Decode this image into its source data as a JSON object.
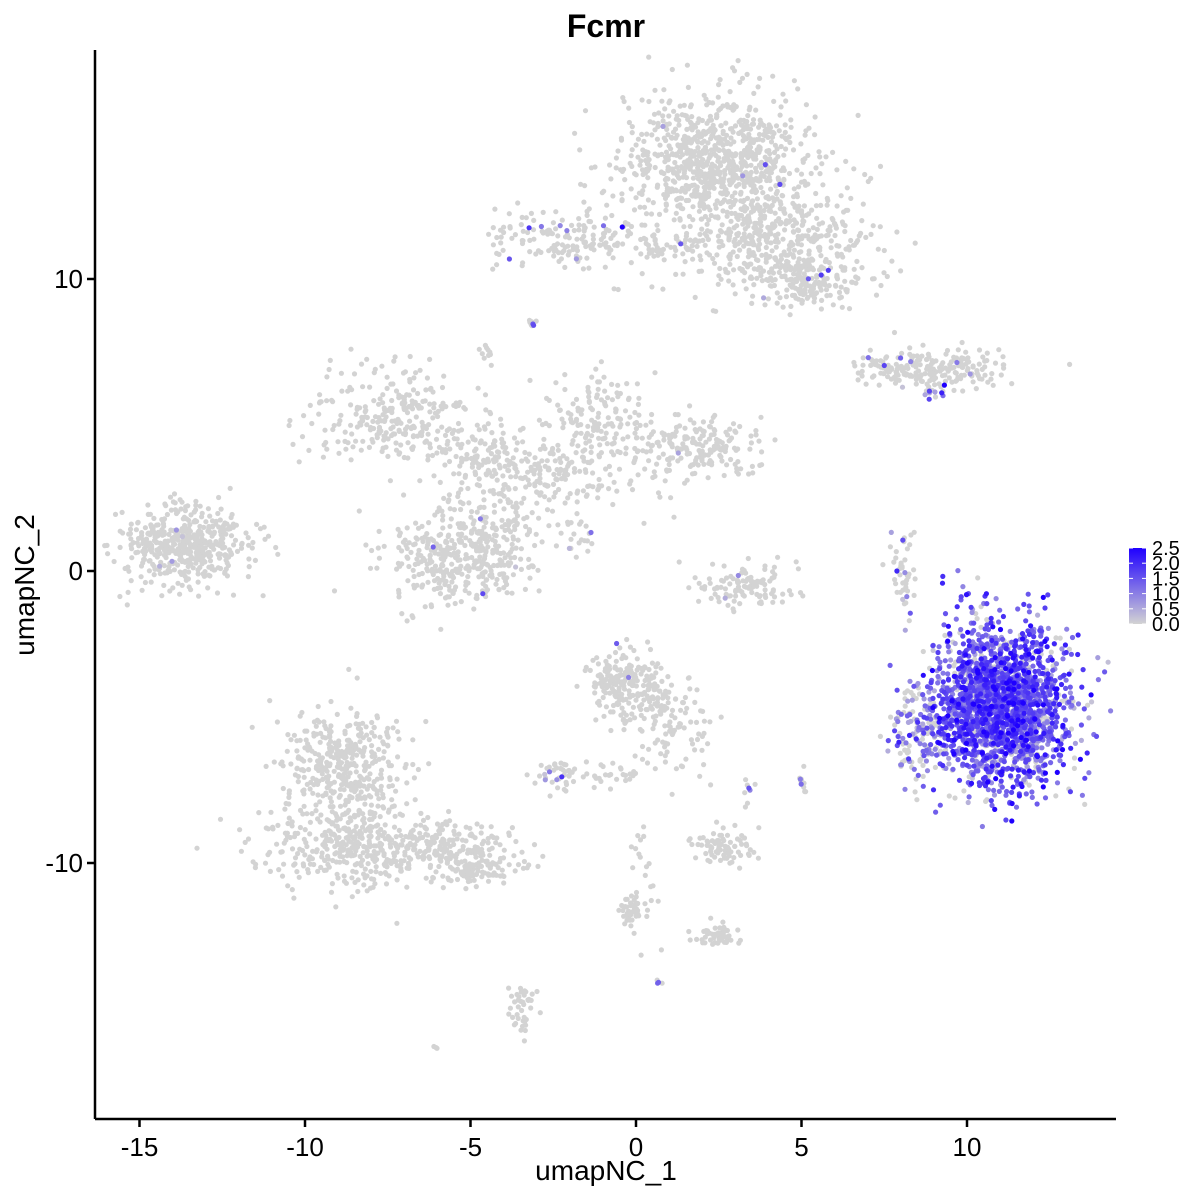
{
  "chart_data": {
    "type": "scatter",
    "title": "Fcmr",
    "xlabel": "umapNC_1",
    "ylabel": "umapNC_2",
    "xlim": [
      -16.5,
      14.5
    ],
    "ylim": [
      -18.5,
      17.7
    ],
    "x_ticks": [
      -15,
      -10,
      -5,
      0,
      5,
      10
    ],
    "x_tick_labels": [
      "-15",
      "-10",
      "-5",
      "0",
      "5",
      "10"
    ],
    "y_ticks": [
      10,
      0,
      -10
    ],
    "y_tick_labels": [
      "10",
      "0",
      "-10"
    ],
    "grid": false,
    "legend": {
      "placement": "right",
      "type": "colorbar",
      "range": [
        0,
        2.5
      ],
      "ticks": [
        2.5,
        2.0,
        1.5,
        1.0,
        0.5,
        0.0
      ],
      "tick_labels": [
        "2.5",
        "2.0",
        "1.5",
        "1.0",
        "0.5",
        "0.0"
      ]
    },
    "colors": {
      "low": "#d3d3d3",
      "high": "#1f00ff",
      "axis": "#000000"
    },
    "expression_range": [
      0,
      2.5
    ],
    "clusters": [
      {
        "cx": 2.5,
        "cy": 14.0,
        "sx": 1.4,
        "sy": 1.2,
        "n": 900,
        "expr_frac": 0.01,
        "expr_mean": 0.8
      },
      {
        "cx": 4.2,
        "cy": 11.3,
        "sx": 1.6,
        "sy": 0.9,
        "n": 420,
        "expr_frac": 0.02,
        "expr_mean": 0.8
      },
      {
        "cx": 5.3,
        "cy": 9.8,
        "sx": 0.8,
        "sy": 0.4,
        "n": 150,
        "expr_frac": 0.02,
        "expr_mean": 0.8
      },
      {
        "cx": -2.1,
        "cy": 11.4,
        "sx": 1.1,
        "sy": 0.5,
        "n": 160,
        "expr_frac": 0.05,
        "expr_mean": 1.2
      },
      {
        "cx": 0.8,
        "cy": 11.0,
        "sx": 1.0,
        "sy": 0.3,
        "n": 40,
        "expr_frac": 0.05,
        "expr_mean": 1.2
      },
      {
        "cx": 9.2,
        "cy": 6.9,
        "sx": 1.2,
        "sy": 0.35,
        "n": 180,
        "expr_frac": 0.03,
        "expr_mean": 1.0
      },
      {
        "cx": 7.8,
        "cy": 6.9,
        "sx": 0.6,
        "sy": 0.2,
        "n": 40,
        "expr_frac": 0.05,
        "expr_mean": 1.0
      },
      {
        "cx": 8.9,
        "cy": 6.1,
        "sx": 0.2,
        "sy": 0.2,
        "n": 14,
        "expr_frac": 0.6,
        "expr_mean": 1.5
      },
      {
        "cx": -7.2,
        "cy": 5.3,
        "sx": 1.3,
        "sy": 0.8,
        "n": 260,
        "expr_frac": 0.0,
        "expr_mean": 0.0
      },
      {
        "cx": -4.8,
        "cy": 3.9,
        "sx": 1.0,
        "sy": 0.6,
        "n": 120,
        "expr_frac": 0.0,
        "expr_mean": 0.0
      },
      {
        "cx": -1.1,
        "cy": 5.2,
        "sx": 0.7,
        "sy": 0.8,
        "n": 140,
        "expr_frac": 0.0,
        "expr_mean": 0.0
      },
      {
        "cx": 1.8,
        "cy": 4.2,
        "sx": 1.0,
        "sy": 0.5,
        "n": 200,
        "expr_frac": 0.01,
        "expr_mean": 0.8
      },
      {
        "cx": -2.5,
        "cy": 3.3,
        "sx": 1.4,
        "sy": 0.7,
        "n": 180,
        "expr_frac": 0.0,
        "expr_mean": 0.0
      },
      {
        "cx": -5.5,
        "cy": 0.5,
        "sx": 1.0,
        "sy": 0.8,
        "n": 360,
        "expr_frac": 0.01,
        "expr_mean": 0.8
      },
      {
        "cx": -4.0,
        "cy": 1.3,
        "sx": 0.5,
        "sy": 0.9,
        "n": 80,
        "expr_frac": 0.0,
        "expr_mean": 0.0
      },
      {
        "cx": -1.8,
        "cy": 1.1,
        "sx": 0.45,
        "sy": 0.45,
        "n": 20,
        "expr_frac": 0.2,
        "expr_mean": 1.0
      },
      {
        "cx": -13.6,
        "cy": 0.9,
        "sx": 1.0,
        "sy": 0.7,
        "n": 480,
        "expr_frac": 0.005,
        "expr_mean": 0.8
      },
      {
        "cx": 3.3,
        "cy": -0.5,
        "sx": 0.8,
        "sy": 0.4,
        "n": 110,
        "expr_frac": 0.01,
        "expr_mean": 0.8
      },
      {
        "cx": 8.1,
        "cy": 0.0,
        "sx": 0.2,
        "sy": 0.7,
        "n": 45,
        "expr_frac": 0.12,
        "expr_mean": 1.0
      },
      {
        "cx": 11.0,
        "cy": -4.6,
        "sx": 1.05,
        "sy": 1.35,
        "n": 2200,
        "expr_frac": 0.82,
        "expr_mean": 1.45
      },
      {
        "cx": 8.6,
        "cy": -5.7,
        "sx": 0.4,
        "sy": 0.9,
        "n": 110,
        "expr_frac": 0.4,
        "expr_mean": 1.2
      },
      {
        "cx": -0.3,
        "cy": -3.8,
        "sx": 0.55,
        "sy": 0.6,
        "n": 200,
        "expr_frac": 0.02,
        "expr_mean": 1.0
      },
      {
        "cx": 0.8,
        "cy": -4.8,
        "sx": 0.7,
        "sy": 0.6,
        "n": 80,
        "expr_frac": 0.0,
        "expr_mean": 0.0
      },
      {
        "cx": -2.4,
        "cy": -7.0,
        "sx": 0.35,
        "sy": 0.25,
        "n": 40,
        "expr_frac": 0.05,
        "expr_mean": 1.0
      },
      {
        "cx": -8.9,
        "cy": -6.8,
        "sx": 0.9,
        "sy": 1.0,
        "n": 420,
        "expr_frac": 0.0,
        "expr_mean": 0.0
      },
      {
        "cx": -8.8,
        "cy": -9.5,
        "sx": 1.2,
        "sy": 0.7,
        "n": 300,
        "expr_frac": 0.0,
        "expr_mean": 0.0
      },
      {
        "cx": -6.0,
        "cy": -9.5,
        "sx": 1.2,
        "sy": 0.5,
        "n": 220,
        "expr_frac": 0.0,
        "expr_mean": 0.0
      },
      {
        "cx": -4.6,
        "cy": -10.2,
        "sx": 0.6,
        "sy": 0.25,
        "n": 80,
        "expr_frac": 0.0,
        "expr_mean": 0.0
      },
      {
        "cx": 2.5,
        "cy": -9.5,
        "sx": 0.5,
        "sy": 0.3,
        "n": 80,
        "expr_frac": 0.0,
        "expr_mean": 0.0
      },
      {
        "cx": 2.4,
        "cy": -12.5,
        "sx": 0.4,
        "sy": 0.2,
        "n": 50,
        "expr_frac": 0.0,
        "expr_mean": 0.0
      },
      {
        "cx": -0.2,
        "cy": -11.7,
        "sx": 0.2,
        "sy": 0.35,
        "n": 40,
        "expr_frac": 0.0,
        "expr_mean": 0.0
      },
      {
        "cx": -3.4,
        "cy": -15.0,
        "sx": 0.2,
        "sy": 0.4,
        "n": 40,
        "expr_frac": 0.05,
        "expr_mean": 1.0
      },
      {
        "cx": -0.7,
        "cy": -7.0,
        "sx": 0.5,
        "sy": 0.3,
        "n": 30,
        "expr_frac": 0.0,
        "expr_mean": 0.0
      },
      {
        "cx": 5.0,
        "cy": -7.3,
        "sx": 0.1,
        "sy": 0.2,
        "n": 12,
        "expr_frac": 0.2,
        "expr_mean": 1.0
      },
      {
        "cx": 3.4,
        "cy": -7.5,
        "sx": 0.1,
        "sy": 0.2,
        "n": 8,
        "expr_frac": 0.2,
        "expr_mean": 1.0
      },
      {
        "cx": 0.7,
        "cy": -14.0,
        "sx": 0.05,
        "sy": 0.05,
        "n": 4,
        "expr_frac": 0.8,
        "expr_mean": 1.2
      },
      {
        "cx": -6.0,
        "cy": -16.3,
        "sx": 0.05,
        "sy": 0.05,
        "n": 3,
        "expr_frac": 0.0,
        "expr_mean": 0.0
      },
      {
        "cx": -3.1,
        "cy": 8.5,
        "sx": 0.1,
        "sy": 0.1,
        "n": 8,
        "expr_frac": 0.3,
        "expr_mean": 1.0
      },
      {
        "cx": -4.5,
        "cy": 7.4,
        "sx": 0.15,
        "sy": 0.2,
        "n": 10,
        "expr_frac": 0.0,
        "expr_mean": 0.0
      },
      {
        "cx": 1.5,
        "cy": -6.0,
        "sx": 0.5,
        "sy": 1.2,
        "n": 30,
        "expr_frac": 0.0,
        "expr_mean": 0.0
      },
      {
        "cx": 0.3,
        "cy": -10.5,
        "sx": 0.3,
        "sy": 1.0,
        "n": 25,
        "expr_frac": 0.0,
        "expr_mean": 0.0
      }
    ]
  }
}
